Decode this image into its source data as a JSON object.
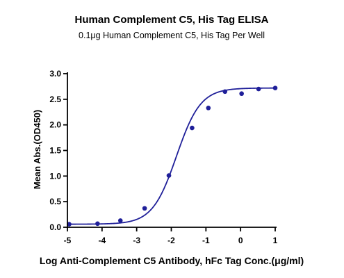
{
  "chart_data": {
    "type": "scatter",
    "title": "Human Complement C5, His Tag ELISA",
    "subtitle": "0.1μg Human Complement C5, His Tag Per Well",
    "xlabel": "Log Anti-Complement C5 Antibody, hFc Tag Conc.(μg/ml)",
    "ylabel": "Mean Abs.(OD450)",
    "xlim": [
      -5,
      1
    ],
    "ylim": [
      0,
      3.0
    ],
    "xticks": [
      -5,
      -4,
      -3,
      -2,
      -1,
      0,
      1
    ],
    "xtick_labels": [
      "-5",
      "-4",
      "-3",
      "-2",
      "-1",
      "0",
      "1"
    ],
    "yticks": [
      0,
      0.5,
      1.0,
      1.5,
      2.0,
      2.5,
      3.0
    ],
    "ytick_labels": [
      "0.0",
      "0.5",
      "1.0",
      "1.5",
      "2.0",
      "2.5",
      "3.0"
    ],
    "grid": false,
    "color": "#1f1f99",
    "series": [
      {
        "x": [
          -4.95,
          -4.13,
          -3.47,
          -2.77,
          -2.07,
          -1.4,
          -0.93,
          -0.45,
          0.03,
          0.52,
          1.0
        ],
        "y": [
          0.06,
          0.07,
          0.13,
          0.37,
          1.01,
          1.94,
          2.33,
          2.65,
          2.61,
          2.7,
          2.72
        ]
      }
    ],
    "fit": {
      "type": "4PL",
      "bottom": 0.06,
      "top": 2.72,
      "logEC50": -1.85,
      "hill": 1.25
    }
  }
}
